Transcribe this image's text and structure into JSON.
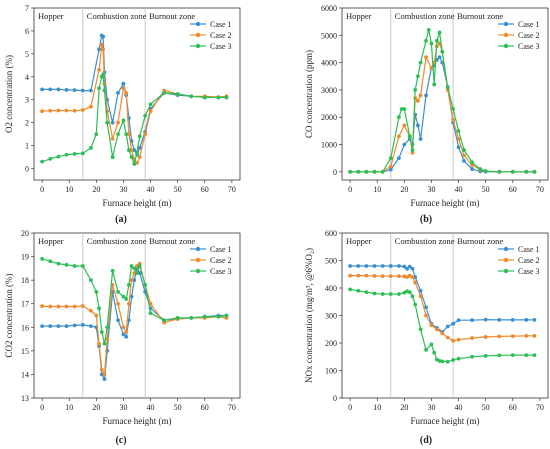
{
  "figure": {
    "zone_labels": [
      "Hopper",
      "Combustion zone",
      "Burnout zone"
    ],
    "zone_boundaries": [
      15,
      38
    ],
    "colors": {
      "Case 1": "#3a8fd1",
      "Case 2": "#f08a2c",
      "Case 3": "#2bbf55",
      "zone_line": "#bdbdbd"
    }
  },
  "chart_data": [
    {
      "id": "a",
      "type": "line",
      "panel_label": "(a)",
      "xlabel": "Furnace height (m)",
      "ylabel": "O2 concentration (%)",
      "xlim": [
        -3,
        73
      ],
      "ylim": [
        -0.5,
        7
      ],
      "xticks": [
        0,
        10,
        20,
        30,
        40,
        50,
        60,
        70
      ],
      "yticks": [
        0,
        1,
        2,
        3,
        4,
        5,
        6,
        7
      ],
      "legend_position": "top-right",
      "series": [
        {
          "name": "Case 1",
          "x": [
            0,
            3,
            6,
            9,
            12,
            15,
            18,
            21,
            22,
            22.5,
            23,
            24,
            26,
            28,
            30,
            31,
            32,
            33,
            34,
            35,
            36,
            38,
            40,
            45,
            50,
            55,
            60,
            65,
            68
          ],
          "y": [
            3.45,
            3.45,
            3.45,
            3.43,
            3.42,
            3.4,
            3.4,
            5.2,
            5.8,
            5.75,
            4.2,
            3.0,
            2.0,
            3.3,
            3.7,
            3.2,
            2.2,
            1.2,
            0.8,
            0.6,
            0.9,
            1.6,
            2.6,
            3.3,
            3.2,
            3.15,
            3.1,
            3.1,
            3.1
          ]
        },
        {
          "name": "Case 2",
          "x": [
            0,
            3,
            6,
            9,
            12,
            15,
            18,
            21,
            22,
            22.5,
            23,
            24,
            26,
            28,
            30,
            31,
            32,
            33,
            34,
            35,
            36,
            38,
            40,
            45,
            50,
            55,
            60,
            65,
            68
          ],
          "y": [
            2.5,
            2.52,
            2.53,
            2.53,
            2.52,
            2.55,
            2.7,
            4.3,
            5.4,
            5.2,
            3.7,
            2.5,
            1.3,
            2.0,
            3.5,
            3.3,
            1.5,
            0.8,
            0.4,
            0.25,
            0.5,
            1.5,
            2.5,
            3.4,
            3.25,
            3.15,
            3.15,
            3.12,
            3.15
          ]
        },
        {
          "name": "Case 3",
          "x": [
            0,
            3,
            6,
            9,
            12,
            15,
            18,
            20,
            21,
            22,
            22.5,
            23,
            24,
            26,
            28,
            30,
            31,
            32,
            33,
            34,
            35,
            36,
            38,
            40,
            45,
            50,
            55,
            60,
            65,
            68
          ],
          "y": [
            0.3,
            0.42,
            0.52,
            0.6,
            0.64,
            0.66,
            0.9,
            1.5,
            3.5,
            4.0,
            4.1,
            3.4,
            2.0,
            0.5,
            1.5,
            2.1,
            1.5,
            0.8,
            0.5,
            0.2,
            0.7,
            1.4,
            2.3,
            2.8,
            3.3,
            3.25,
            3.15,
            3.1,
            3.1,
            3.1
          ]
        }
      ]
    },
    {
      "id": "b",
      "type": "line",
      "panel_label": "(b)",
      "xlabel": "Furnace height (m)",
      "ylabel": "CO concentration (ppm)",
      "xlim": [
        -3,
        73
      ],
      "ylim": [
        -300,
        6000
      ],
      "xticks": [
        0,
        10,
        20,
        30,
        40,
        50,
        60,
        70
      ],
      "yticks": [
        0,
        1000,
        2000,
        3000,
        4000,
        5000,
        6000
      ],
      "legend_position": "top-right",
      "series": [
        {
          "name": "Case 1",
          "x": [
            0,
            3,
            6,
            9,
            12,
            15,
            18,
            20,
            22,
            23,
            24,
            25,
            26,
            28,
            30,
            31,
            32,
            33,
            34,
            36,
            38,
            40,
            42,
            45,
            48,
            50,
            55,
            60,
            65,
            68
          ],
          "y": [
            0,
            0,
            0,
            0,
            0,
            80,
            500,
            1000,
            1200,
            1000,
            2100,
            1700,
            1200,
            2800,
            3800,
            3900,
            4100,
            4200,
            4000,
            3100,
            1800,
            900,
            400,
            100,
            20,
            0,
            0,
            0,
            0,
            0
          ]
        },
        {
          "name": "Case 2",
          "x": [
            0,
            3,
            6,
            9,
            12,
            15,
            18,
            20,
            22,
            23,
            24,
            25,
            26,
            28,
            30,
            31,
            32,
            33,
            34,
            36,
            38,
            40,
            42,
            45,
            48,
            50,
            55,
            60,
            65,
            68
          ],
          "y": [
            0,
            0,
            0,
            0,
            0,
            200,
            1300,
            1700,
            1300,
            700,
            2700,
            2600,
            2800,
            4200,
            3800,
            4000,
            4600,
            4700,
            4400,
            3000,
            1900,
            1200,
            600,
            250,
            80,
            20,
            0,
            0,
            0,
            0
          ]
        },
        {
          "name": "Case 3",
          "x": [
            0,
            3,
            6,
            9,
            12,
            15,
            18,
            19,
            20,
            22,
            23,
            24,
            25,
            26,
            28,
            29,
            30,
            31,
            32,
            33,
            34,
            36,
            38,
            40,
            42,
            45,
            48,
            50,
            55,
            60,
            65,
            68
          ],
          "y": [
            0,
            0,
            0,
            0,
            0,
            500,
            2000,
            2300,
            2300,
            1300,
            800,
            3000,
            3500,
            4000,
            4800,
            5200,
            4700,
            3200,
            4800,
            5100,
            4400,
            3100,
            2300,
            1500,
            800,
            350,
            100,
            30,
            0,
            0,
            0,
            0
          ]
        }
      ]
    },
    {
      "id": "c",
      "type": "line",
      "panel_label": "(c)",
      "xlabel": "Furnace height (m)",
      "ylabel": "CO2 concentration (%)",
      "xlim": [
        -3,
        73
      ],
      "ylim": [
        13,
        20
      ],
      "xticks": [
        0,
        10,
        20,
        30,
        40,
        50,
        60,
        70
      ],
      "yticks": [
        13,
        14,
        15,
        16,
        17,
        18,
        19,
        20
      ],
      "legend_position": "top-right",
      "series": [
        {
          "name": "Case 1",
          "x": [
            0,
            3,
            6,
            9,
            12,
            15,
            18,
            20,
            21,
            22,
            23,
            24,
            26,
            28,
            30,
            31,
            32,
            33,
            34,
            35,
            36,
            38,
            40,
            45,
            50,
            55,
            60,
            65,
            68
          ],
          "y": [
            16.05,
            16.05,
            16.05,
            16.05,
            16.08,
            16.1,
            16.05,
            16.0,
            15.2,
            14.0,
            13.8,
            15.0,
            17.5,
            16.3,
            15.7,
            15.6,
            16.3,
            17.3,
            18.0,
            18.5,
            18.3,
            17.5,
            16.8,
            16.3,
            16.35,
            16.4,
            16.45,
            16.5,
            16.5
          ]
        },
        {
          "name": "Case 2",
          "x": [
            0,
            3,
            6,
            9,
            12,
            15,
            18,
            20,
            21,
            22,
            23,
            24,
            26,
            28,
            30,
            31,
            32,
            33,
            34,
            35,
            36,
            38,
            40,
            45,
            50,
            55,
            60,
            65,
            68
          ],
          "y": [
            16.9,
            16.88,
            16.88,
            16.88,
            16.88,
            16.9,
            16.7,
            16.5,
            15.3,
            14.2,
            14.0,
            15.5,
            17.8,
            17.0,
            16.0,
            15.8,
            17.0,
            18.0,
            18.3,
            18.6,
            18.7,
            17.8,
            17.0,
            16.2,
            16.35,
            16.4,
            16.4,
            16.45,
            16.4
          ]
        },
        {
          "name": "Case 3",
          "x": [
            0,
            3,
            6,
            9,
            12,
            15,
            18,
            20,
            21,
            22,
            23,
            24,
            26,
            28,
            30,
            31,
            32,
            33,
            34,
            35,
            36,
            38,
            40,
            45,
            50,
            55,
            60,
            65,
            68
          ],
          "y": [
            18.9,
            18.8,
            18.7,
            18.65,
            18.6,
            18.6,
            18.0,
            17.5,
            16.8,
            15.8,
            15.3,
            16.0,
            18.4,
            17.5,
            17.3,
            17.2,
            17.8,
            18.6,
            18.5,
            18.3,
            18.6,
            17.8,
            16.6,
            16.3,
            16.4,
            16.4,
            16.45,
            16.45,
            16.5
          ]
        }
      ]
    },
    {
      "id": "d",
      "type": "line",
      "panel_label": "(d)",
      "xlabel": "Furnace height (m)",
      "ylabel": "NOx concentration (mg/m³, @6%O₂)",
      "xlim": [
        -3,
        73
      ],
      "ylim": [
        0,
        600
      ],
      "xticks": [
        0,
        10,
        20,
        30,
        40,
        50,
        60,
        70
      ],
      "yticks": [
        0,
        100,
        200,
        300,
        400,
        500,
        600
      ],
      "legend_position": "top-right",
      "series": [
        {
          "name": "Case 1",
          "x": [
            0,
            3,
            6,
            9,
            12,
            15,
            18,
            20,
            21,
            22,
            23,
            24,
            26,
            28,
            30,
            32,
            34,
            36,
            38,
            40,
            45,
            50,
            55,
            60,
            65,
            68
          ],
          "y": [
            480,
            480,
            480,
            480,
            480,
            480,
            480,
            478,
            470,
            478,
            470,
            440,
            390,
            330,
            270,
            255,
            240,
            260,
            270,
            283,
            283,
            285,
            284,
            284,
            284,
            284
          ]
        },
        {
          "name": "Case 2",
          "x": [
            0,
            3,
            6,
            9,
            12,
            15,
            18,
            20,
            21,
            22,
            23,
            24,
            26,
            28,
            30,
            32,
            34,
            36,
            38,
            40,
            45,
            50,
            55,
            60,
            65,
            68
          ],
          "y": [
            445,
            445,
            445,
            444,
            443,
            443,
            443,
            442,
            440,
            445,
            440,
            420,
            370,
            300,
            265,
            250,
            235,
            220,
            208,
            212,
            218,
            222,
            224,
            225,
            226,
            226
          ]
        },
        {
          "name": "Case 3",
          "x": [
            0,
            3,
            6,
            9,
            12,
            15,
            18,
            20,
            21,
            22,
            23,
            24,
            26,
            28,
            30,
            31,
            32,
            33,
            34,
            36,
            38,
            40,
            45,
            50,
            55,
            60,
            65,
            68
          ],
          "y": [
            395,
            390,
            385,
            380,
            378,
            378,
            378,
            383,
            388,
            385,
            370,
            340,
            250,
            175,
            195,
            165,
            140,
            135,
            133,
            132,
            138,
            143,
            150,
            153,
            155,
            156,
            156,
            156
          ]
        }
      ]
    }
  ]
}
